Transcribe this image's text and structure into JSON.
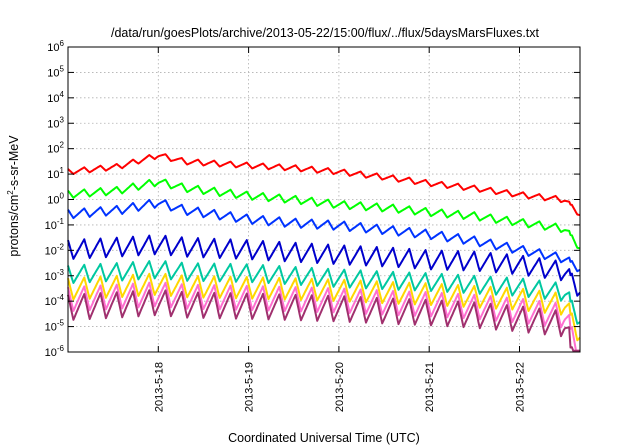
{
  "chart_data": {
    "type": "line",
    "title": "/data/run/goesPlots/archive/2013-05-22/15:00/flux/../flux/5daysMarsFluxes.txt",
    "xlabel": "Coordinated Universal Time (UTC)",
    "ylabel_pre": "protons/cm",
    "ylabel_sup": "2",
    "ylabel_post": "-s-sr-MeV",
    "y_scale": "log",
    "ylim_exp": [
      -6,
      6
    ],
    "y_ticks": [
      {
        "base": "10",
        "exp": "-6"
      },
      {
        "base": "10",
        "exp": "-5"
      },
      {
        "base": "10",
        "exp": "-4"
      },
      {
        "base": "10",
        "exp": "-3"
      },
      {
        "base": "10",
        "exp": "-2"
      },
      {
        "base": "10",
        "exp": "-1"
      },
      {
        "base": "10",
        "exp": "0"
      },
      {
        "base": "10",
        "exp": "1"
      },
      {
        "base": "10",
        "exp": "2"
      },
      {
        "base": "10",
        "exp": "3"
      },
      {
        "base": "10",
        "exp": "4"
      },
      {
        "base": "10",
        "exp": "5"
      },
      {
        "base": "10",
        "exp": "6"
      }
    ],
    "x_range_days": [
      0,
      5.67
    ],
    "x_ticks": [
      {
        "label": "2013-5-18",
        "day": 1
      },
      {
        "label": "2013-5-19",
        "day": 2
      },
      {
        "label": "2013-5-20",
        "day": 3
      },
      {
        "label": "2013-5-21",
        "day": 4
      },
      {
        "label": "2013-5-22",
        "day": 5
      }
    ],
    "grid": true,
    "legend": "none",
    "series": [
      {
        "color": "#ff0000",
        "sawtooth_amp": 0.22,
        "end_drop": 0.1,
        "envelope": [
          [
            0,
            1.2
          ],
          [
            0.55,
            1.4
          ],
          [
            1.0,
            1.85
          ],
          [
            1.3,
            1.6
          ],
          [
            2.0,
            1.45
          ],
          [
            2.5,
            1.35
          ],
          [
            3.0,
            1.2
          ],
          [
            3.6,
            0.95
          ],
          [
            4.0,
            0.75
          ],
          [
            4.5,
            0.55
          ],
          [
            5.0,
            0.3
          ],
          [
            5.5,
            0.1
          ],
          [
            5.67,
            -0.35
          ]
        ]
      },
      {
        "color": "#00ff00",
        "sawtooth_amp": 0.3,
        "end_drop": 0.15,
        "envelope": [
          [
            0,
            0.35
          ],
          [
            0.55,
            0.5
          ],
          [
            1.0,
            0.85
          ],
          [
            1.3,
            0.6
          ],
          [
            2.0,
            0.3
          ],
          [
            2.5,
            0.15
          ],
          [
            3.0,
            -0.05
          ],
          [
            3.6,
            -0.2
          ],
          [
            4.0,
            -0.35
          ],
          [
            4.5,
            -0.5
          ],
          [
            5.0,
            -0.75
          ],
          [
            5.5,
            -1.0
          ],
          [
            5.67,
            -1.55
          ]
        ]
      },
      {
        "color": "#0033ff",
        "sawtooth_amp": 0.35,
        "end_drop": 0.2,
        "envelope": [
          [
            0,
            -0.4
          ],
          [
            0.55,
            -0.25
          ],
          [
            1.0,
            0.05
          ],
          [
            1.3,
            -0.25
          ],
          [
            2.0,
            -0.6
          ],
          [
            2.5,
            -0.75
          ],
          [
            3.0,
            -0.85
          ],
          [
            3.6,
            -1.05
          ],
          [
            4.0,
            -1.2
          ],
          [
            4.5,
            -1.45
          ],
          [
            5.0,
            -1.8
          ],
          [
            5.5,
            -2.15
          ],
          [
            5.67,
            -2.3
          ]
        ]
      },
      {
        "color": "#0000cc",
        "sawtooth_amp": 0.75,
        "end_drop": 0.3,
        "envelope": [
          [
            0,
            -1.6
          ],
          [
            0.55,
            -1.5
          ],
          [
            1.0,
            -1.4
          ],
          [
            1.3,
            -1.5
          ],
          [
            2.0,
            -1.6
          ],
          [
            2.5,
            -1.7
          ],
          [
            3.0,
            -1.8
          ],
          [
            3.6,
            -1.9
          ],
          [
            4.0,
            -2.0
          ],
          [
            4.5,
            -2.05
          ],
          [
            5.0,
            -2.2
          ],
          [
            5.5,
            -2.45
          ],
          [
            5.67,
            -2.8
          ]
        ]
      },
      {
        "color": "#00c8a0",
        "sawtooth_amp": 0.7,
        "end_drop": 0.4,
        "envelope": [
          [
            0,
            -2.6
          ],
          [
            0.55,
            -2.5
          ],
          [
            1.0,
            -2.4
          ],
          [
            1.3,
            -2.5
          ],
          [
            2.0,
            -2.55
          ],
          [
            2.5,
            -2.65
          ],
          [
            3.0,
            -2.75
          ],
          [
            3.6,
            -2.85
          ],
          [
            4.0,
            -2.9
          ],
          [
            4.5,
            -3.0
          ],
          [
            5.0,
            -3.1
          ],
          [
            5.5,
            -3.3
          ],
          [
            5.67,
            -3.9
          ]
        ]
      },
      {
        "color": "#ffd700",
        "sawtooth_amp": 0.85,
        "end_drop": 0.5,
        "envelope": [
          [
            0,
            -3.1
          ],
          [
            0.55,
            -3.0
          ],
          [
            1.0,
            -2.9
          ],
          [
            1.3,
            -3.0
          ],
          [
            2.0,
            -3.05
          ],
          [
            2.5,
            -3.1
          ],
          [
            3.0,
            -3.15
          ],
          [
            3.6,
            -3.25
          ],
          [
            4.0,
            -3.3
          ],
          [
            4.5,
            -3.4
          ],
          [
            5.0,
            -3.5
          ],
          [
            5.5,
            -3.7
          ],
          [
            5.67,
            -4.3
          ]
        ]
      },
      {
        "color": "#ff6fd0",
        "sawtooth_amp": 0.95,
        "end_drop": 0.6,
        "envelope": [
          [
            0,
            -3.45
          ],
          [
            0.55,
            -3.35
          ],
          [
            1.0,
            -3.25
          ],
          [
            1.3,
            -3.35
          ],
          [
            2.0,
            -3.4
          ],
          [
            2.5,
            -3.45
          ],
          [
            3.0,
            -3.5
          ],
          [
            3.6,
            -3.6
          ],
          [
            4.0,
            -3.65
          ],
          [
            4.5,
            -3.75
          ],
          [
            5.0,
            -3.9
          ],
          [
            5.5,
            -4.1
          ],
          [
            5.67,
            -4.8
          ]
        ]
      },
      {
        "color": "#a0306e",
        "sawtooth_amp": 1.0,
        "end_drop": 0.8,
        "envelope": [
          [
            0,
            -3.75
          ],
          [
            0.55,
            -3.65
          ],
          [
            1.0,
            -3.55
          ],
          [
            1.3,
            -3.65
          ],
          [
            2.0,
            -3.7
          ],
          [
            2.5,
            -3.75
          ],
          [
            3.0,
            -3.8
          ],
          [
            3.6,
            -3.9
          ],
          [
            4.0,
            -3.95
          ],
          [
            4.5,
            -4.05
          ],
          [
            5.0,
            -4.2
          ],
          [
            5.5,
            -4.4
          ],
          [
            5.67,
            -5.7
          ]
        ]
      }
    ]
  }
}
